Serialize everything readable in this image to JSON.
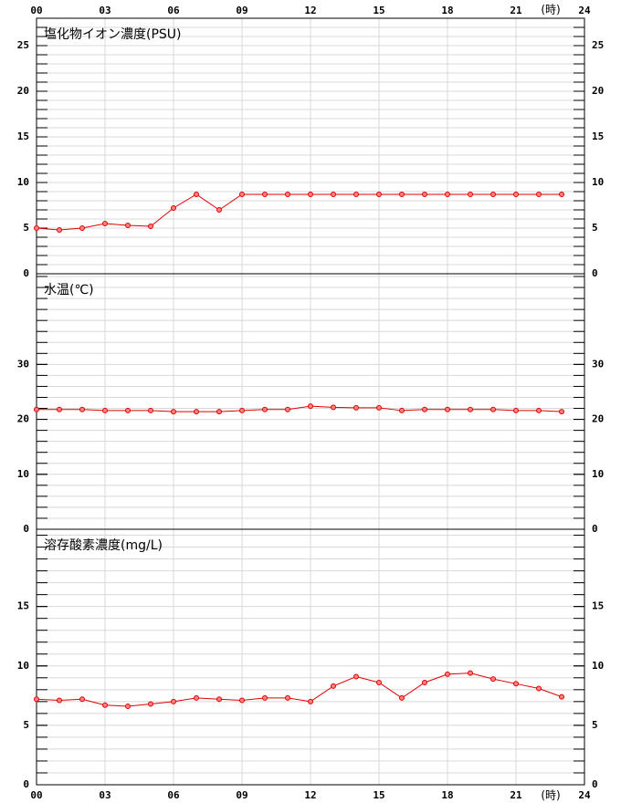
{
  "chart_data": [
    {
      "type": "line",
      "title": "塩化物イオン濃度(PSU)",
      "top": 20,
      "bottom": 300,
      "x": [
        0,
        1,
        2,
        3,
        4,
        5,
        6,
        7,
        8,
        9,
        10,
        11,
        12,
        13,
        14,
        15,
        16,
        17,
        18,
        19,
        20,
        21,
        22,
        23
      ],
      "xlim": [
        0,
        24
      ],
      "xaxis_position": "top",
      "x_label": "(時)",
      "xticks": [
        {
          "value": 0,
          "label": "00"
        },
        {
          "value": 3,
          "label": "03"
        },
        {
          "value": 6,
          "label": "06"
        },
        {
          "value": 9,
          "label": "09"
        },
        12,
        15,
        18,
        21,
        24
      ],
      "ylim": [
        0,
        28
      ],
      "yticks": [
        0,
        5,
        10,
        15,
        20,
        25
      ],
      "minor_tick_step": 1,
      "series": [
        {
          "color": "#e00000",
          "values": [
            5.0,
            4.8,
            5.0,
            5.5,
            5.3,
            5.2,
            7.2,
            8.7,
            7.0,
            8.7,
            8.7,
            8.7,
            8.7,
            8.7,
            8.7,
            8.7,
            8.7,
            8.7,
            8.7,
            8.7,
            8.7,
            8.7,
            8.7,
            8.7
          ]
        }
      ]
    },
    {
      "type": "line",
      "title": "水温(℃)",
      "top": 300,
      "bottom": 580,
      "x": [
        0,
        1,
        2,
        3,
        4,
        5,
        6,
        7,
        8,
        9,
        10,
        11,
        12,
        13,
        14,
        15,
        16,
        17,
        18,
        19,
        20,
        21,
        22,
        23
      ],
      "xlim": [
        0,
        24
      ],
      "xticks": [
        0,
        3,
        6,
        9,
        12,
        15,
        18,
        21,
        24
      ],
      "ylim": [
        0,
        46.5
      ],
      "yticks": [
        0,
        10,
        20,
        30
      ],
      "minor_tick_step": 2,
      "series": [
        {
          "color": "#e00000",
          "values": [
            21.8,
            21.8,
            21.8,
            21.6,
            21.6,
            21.6,
            21.4,
            21.4,
            21.4,
            21.6,
            21.8,
            21.8,
            22.4,
            22.2,
            22.1,
            22.1,
            21.6,
            21.8,
            21.8,
            21.8,
            21.8,
            21.6,
            21.6,
            21.4
          ]
        }
      ]
    },
    {
      "type": "line",
      "title": "溶存酸素濃度(mg/L)",
      "top": 580,
      "bottom": 860,
      "x": [
        0,
        1,
        2,
        3,
        4,
        5,
        6,
        7,
        8,
        9,
        10,
        11,
        12,
        13,
        14,
        15,
        16,
        17,
        18,
        19,
        20,
        21,
        22,
        23
      ],
      "xlim": [
        0,
        24
      ],
      "xaxis_position": "bottom",
      "x_label": "(時)",
      "xticks": [
        {
          "value": 0,
          "label": "00"
        },
        {
          "value": 3,
          "label": "03"
        },
        {
          "value": 6,
          "label": "06"
        },
        {
          "value": 9,
          "label": "09"
        },
        12,
        15,
        18,
        21,
        24
      ],
      "ylim": [
        0,
        21.5
      ],
      "yticks": [
        0,
        5,
        10,
        15
      ],
      "minor_tick_step": 1,
      "series": [
        {
          "color": "#e00000",
          "values": [
            7.2,
            7.1,
            7.2,
            6.7,
            6.6,
            6.8,
            7.0,
            7.3,
            7.2,
            7.1,
            7.3,
            7.3,
            7.0,
            8.3,
            9.1,
            8.6,
            7.3,
            8.6,
            9.3,
            9.4,
            8.9,
            8.5,
            8.1,
            7.4
          ]
        }
      ]
    }
  ]
}
